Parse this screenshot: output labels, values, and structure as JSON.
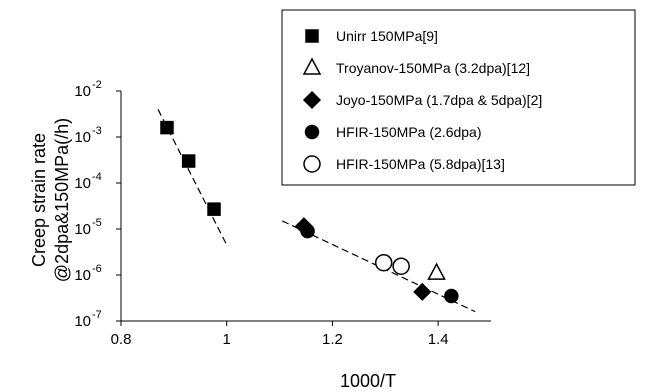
{
  "chart_data": {
    "type": "scatter",
    "xlabel": "1000/T",
    "ylabel_lines": [
      "Creep strain rate",
      "@2dpa&150MPa(/h)"
    ],
    "xlim": [
      0.8,
      1.5
    ],
    "ylim": [
      1e-07,
      0.01
    ],
    "yscale": "log",
    "grid": false,
    "legend_position": "top-right",
    "x_ticks": [
      {
        "value": 0.8,
        "label": "0.8"
      },
      {
        "value": 1.0,
        "label": "1"
      },
      {
        "value": 1.2,
        "label": "1.2"
      },
      {
        "value": 1.4,
        "label": "1.4"
      }
    ],
    "y_ticks": [
      {
        "exp": -7,
        "base": "10",
        "sup": "-7"
      },
      {
        "exp": -6,
        "base": "10",
        "sup": "-6"
      },
      {
        "exp": -5,
        "base": "10",
        "sup": "-5"
      },
      {
        "exp": -4,
        "base": "10",
        "sup": "-4"
      },
      {
        "exp": -3,
        "base": "10",
        "sup": "-3"
      },
      {
        "exp": -2,
        "base": "10",
        "sup": "-2"
      }
    ],
    "series": [
      {
        "name": "Unirr 150MPa[9]",
        "marker": "square",
        "filled": true,
        "points": [
          [
            0.887,
            0.0016
          ],
          [
            0.928,
            0.0003
          ],
          [
            0.976,
            2.7e-05
          ]
        ]
      },
      {
        "name": "Troyanov-150MPa (3.2dpa)[12]",
        "marker": "triangle",
        "filled": false,
        "points": [
          [
            1.397,
            1.1e-06
          ]
        ]
      },
      {
        "name": "Joyo-150MPa (1.7dpa & 5dpa)[2]",
        "marker": "diamond",
        "filled": true,
        "points": [
          [
            1.146,
            1.15e-05
          ],
          [
            1.37,
            4.3e-07
          ]
        ]
      },
      {
        "name": "HFIR-150MPa (2.6dpa)",
        "marker": "circle",
        "filled": true,
        "points": [
          [
            1.153,
            9e-06
          ],
          [
            1.425,
            3.5e-07
          ]
        ]
      },
      {
        "name": "HFIR-150MPa (5.8dpa)[13]",
        "marker": "circle",
        "filled": false,
        "points": [
          [
            1.297,
            1.85e-06
          ],
          [
            1.33,
            1.55e-06
          ]
        ]
      }
    ],
    "trend_lines": [
      {
        "points": [
          [
            0.87,
            0.004
          ],
          [
            1.0,
            4.5e-06
          ]
        ]
      },
      {
        "points": [
          [
            1.105,
            1.5e-05
          ],
          [
            1.47,
            1.6e-07
          ]
        ]
      }
    ]
  }
}
